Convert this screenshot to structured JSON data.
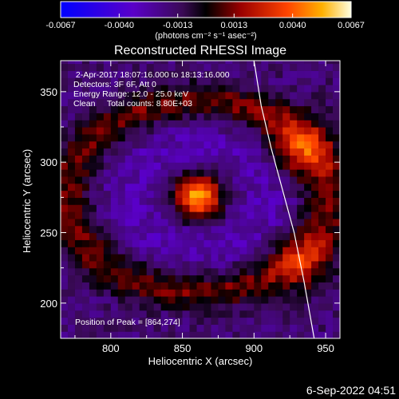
{
  "chart_data": {
    "type": "heatmap",
    "title": "Reconstructed RHESSI Image",
    "xlabel": "Heliocentric X (arcsec)",
    "ylabel": "Heliocentric Y (arcsec)",
    "xlim": [
      765,
      960
    ],
    "ylim": [
      175,
      372
    ],
    "x_ticks": [
      800,
      850,
      900,
      950
    ],
    "y_ticks": [
      200,
      250,
      300,
      350
    ],
    "grid": false,
    "colorbar": {
      "position": "top",
      "range": [
        -0.0067,
        0.0067
      ],
      "tick_values": [
        -0.0067,
        -0.004,
        -0.0013,
        0.0013,
        0.004,
        0.0067
      ],
      "tick_labels": [
        "-0.0067",
        "-0.0040",
        "-0.0013",
        "0.0013",
        "0.0040",
        "0.0067"
      ],
      "units_label": "(photons cm⁻² s⁻¹ asec⁻²)"
    },
    "annotations": [
      " 2-Apr-2017 18:07:16.000 to 18:13:16.000",
      "Detectors: 3F 6F, Att 0",
      "Energy Range: 12.0 - 25.0 keV",
      "Clean     Total counts: 8.80E+03"
    ],
    "peak_label": "Position of Peak = [864,274]",
    "peak_position": [
      864,
      274
    ],
    "sources": [
      {
        "x": 861,
        "y": 276,
        "peak": 0.0067
      },
      {
        "x": 933,
        "y": 310,
        "peak": 0.0034
      },
      {
        "x": 936,
        "y": 228,
        "peak": 0.0024
      }
    ],
    "limb_curve": {
      "x": [
        900,
        905,
        912,
        920,
        928,
        935,
        942
      ],
      "y": [
        372,
        340,
        310,
        280,
        250,
        215,
        175
      ]
    }
  },
  "footer_stamp": "6-Sep-2022 04:51",
  "colors": {
    "background": "#000000",
    "foreground": "#ffffff",
    "colormap": [
      "#0000ff",
      "#6a00a8",
      "#000000",
      "#cc1100",
      "#ff8800",
      "#ffffcc"
    ]
  }
}
